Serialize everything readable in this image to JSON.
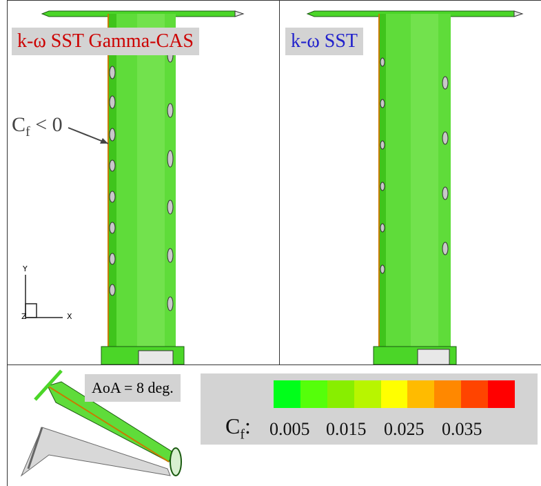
{
  "panels": {
    "left": {
      "label": "k-ω SST Gamma-CAS",
      "label_color": "#cc0000"
    },
    "right": {
      "label": "k-ω SST",
      "label_color": "#2222cc"
    }
  },
  "annotation": {
    "cf_symbol": "C",
    "cf_subscript": "f",
    "cf_relation": " < 0"
  },
  "axes_triad": {
    "y": "Y",
    "x": "X",
    "z": "Z"
  },
  "aoa_label": "AoA = 8 deg.",
  "legend": {
    "symbol": "C",
    "subscript": "f",
    "colon": ":",
    "ticks": [
      "0.005",
      "0.015",
      "0.025",
      "0.035"
    ],
    "colors": [
      "#00ff1a",
      "#55ff0a",
      "#88ee00",
      "#b8f500",
      "#ffff00",
      "#ffbb00",
      "#ff8800",
      "#ff4400",
      "#ff0000"
    ]
  },
  "colors": {
    "surface_green": "#4bd628",
    "surface_light": "#7ee65a",
    "separated_grey": "#c8c8c8"
  }
}
